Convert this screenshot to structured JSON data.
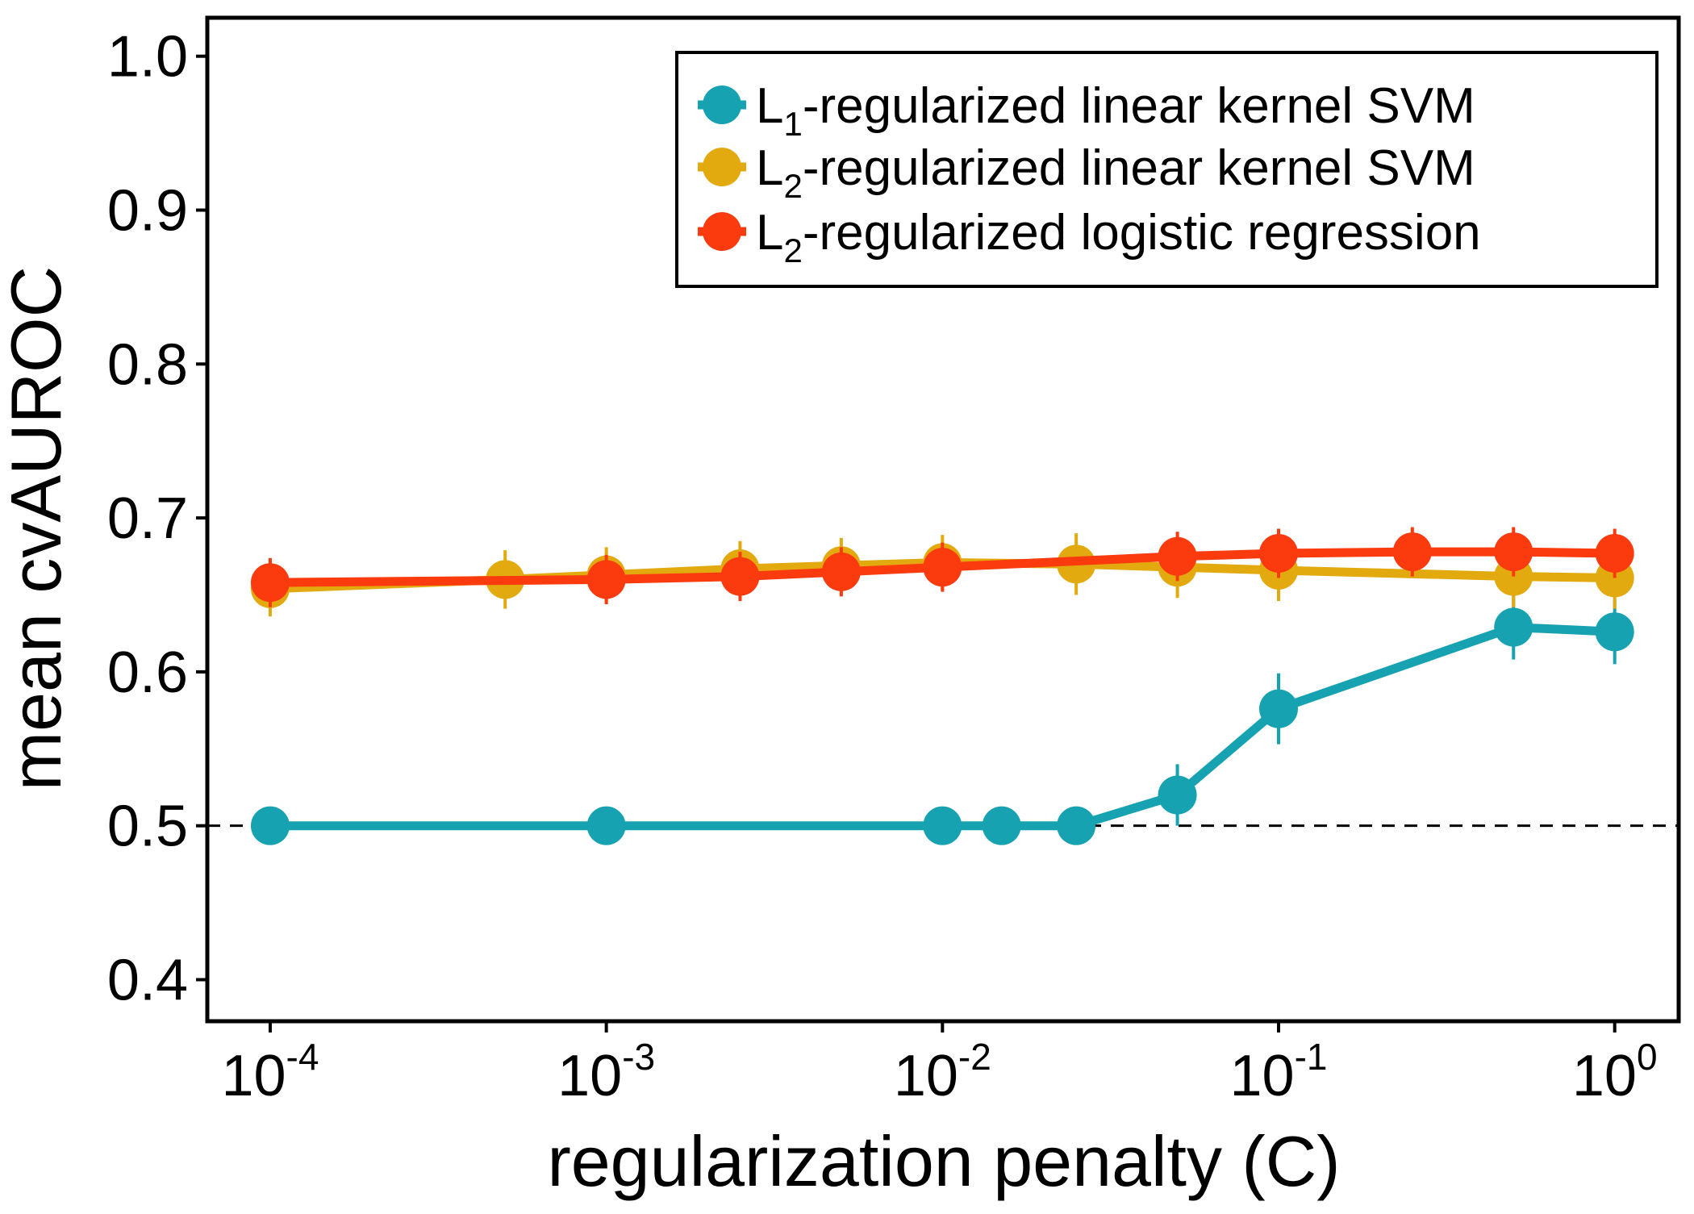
{
  "chart_data": {
    "type": "line",
    "title": "",
    "xlabel": "regularization penalty (C)",
    "ylabel": "mean cvAUROC",
    "x_scale": "log",
    "xlim": [
      6.5e-05,
      1.55
    ],
    "ylim": [
      0.373,
      1.025
    ],
    "x_ticks": [
      {
        "value": 0.0001,
        "base": "10",
        "exp": "-4"
      },
      {
        "value": 0.001,
        "base": "10",
        "exp": "-3"
      },
      {
        "value": 0.01,
        "base": "10",
        "exp": "-2"
      },
      {
        "value": 0.1,
        "base": "10",
        "exp": "-1"
      },
      {
        "value": 1,
        "base": "10",
        "exp": "0"
      }
    ],
    "y_ticks": [
      {
        "value": 0.4,
        "label": "0.4"
      },
      {
        "value": 0.5,
        "label": "0.5"
      },
      {
        "value": 0.6,
        "label": "0.6"
      },
      {
        "value": 0.7,
        "label": "0.7"
      },
      {
        "value": 0.8,
        "label": "0.8"
      },
      {
        "value": 0.9,
        "label": "0.9"
      },
      {
        "value": 1.0,
        "label": "1.0"
      }
    ],
    "grid": false,
    "legend_position": "top-right",
    "reference_line": {
      "y": 0.5,
      "style": "dashed",
      "color": "#000000"
    },
    "series": [
      {
        "name": "L1-regularized linear kernel SVM",
        "legend_text": {
          "main": "L",
          "sub": "1",
          "rest": "-regularized linear kernel SVM"
        },
        "color": "#16a2b0",
        "x": [
          0.0001,
          0.001,
          0.01,
          0.015,
          0.025,
          0.05,
          0.1,
          0.5,
          1
        ],
        "y": [
          0.5,
          0.5,
          0.5,
          0.5,
          0.5,
          0.52,
          0.576,
          0.629,
          0.626
        ],
        "err": [
          0,
          0,
          0,
          0,
          0,
          0.02,
          0.023,
          0.021,
          0.021
        ]
      },
      {
        "name": "L2-regularized linear kernel SVM",
        "legend_text": {
          "main": "L",
          "sub": "2",
          "rest": "-regularized linear kernel SVM"
        },
        "color": "#e2aa0e",
        "x": [
          0.0001,
          0.0005,
          0.001,
          0.0025,
          0.005,
          0.01,
          0.025,
          0.05,
          0.1,
          0.5,
          1
        ],
        "y": [
          0.654,
          0.66,
          0.663,
          0.667,
          0.669,
          0.671,
          0.67,
          0.668,
          0.666,
          0.662,
          0.661
        ],
        "err": [
          0.018,
          0.019,
          0.018,
          0.018,
          0.018,
          0.018,
          0.02,
          0.02,
          0.02,
          0.02,
          0.02
        ]
      },
      {
        "name": "L2-regularized logistic regression",
        "legend_text": {
          "main": "L",
          "sub": "2",
          "rest": "-regularized logistic regression"
        },
        "color": "#fb3a0e",
        "x": [
          0.0001,
          0.001,
          0.0025,
          0.005,
          0.01,
          0.05,
          0.1,
          0.25,
          0.5,
          1
        ],
        "y": [
          0.658,
          0.66,
          0.662,
          0.665,
          0.668,
          0.675,
          0.677,
          0.678,
          0.678,
          0.677
        ],
        "err": [
          0.016,
          0.016,
          0.016,
          0.016,
          0.016,
          0.016,
          0.016,
          0.016,
          0.016,
          0.016
        ]
      }
    ]
  }
}
